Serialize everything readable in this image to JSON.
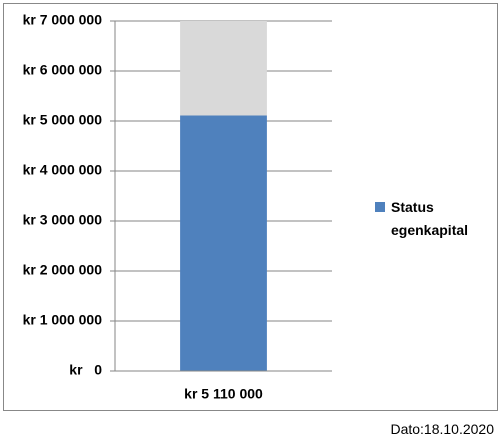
{
  "chart_data": {
    "type": "stacked_bar",
    "categories": [
      "kr 5 110 000"
    ],
    "series": [
      {
        "name": "Status egenkapital",
        "color": "#4f81bd",
        "values": [
          5110000
        ]
      },
      {
        "color": "#d9d9d9",
        "values": [
          1890000
        ]
      }
    ],
    "ylim": [
      0,
      7000000
    ],
    "yticks": [
      {
        "value": 0,
        "label": "kr   0"
      },
      {
        "value": 1000000,
        "label": "kr 1 000 000"
      },
      {
        "value": 2000000,
        "label": "kr 2 000 000"
      },
      {
        "value": 3000000,
        "label": "kr 3 000 000"
      },
      {
        "value": 4000000,
        "label": "kr 4 000 000"
      },
      {
        "value": 5000000,
        "label": "kr 5 000 000"
      },
      {
        "value": 6000000,
        "label": "kr 6 000 000"
      },
      {
        "value": 7000000,
        "label": "kr 7 000 000"
      }
    ],
    "grid": true,
    "legend": "right",
    "footnote": "Dato:18.10.2020"
  }
}
